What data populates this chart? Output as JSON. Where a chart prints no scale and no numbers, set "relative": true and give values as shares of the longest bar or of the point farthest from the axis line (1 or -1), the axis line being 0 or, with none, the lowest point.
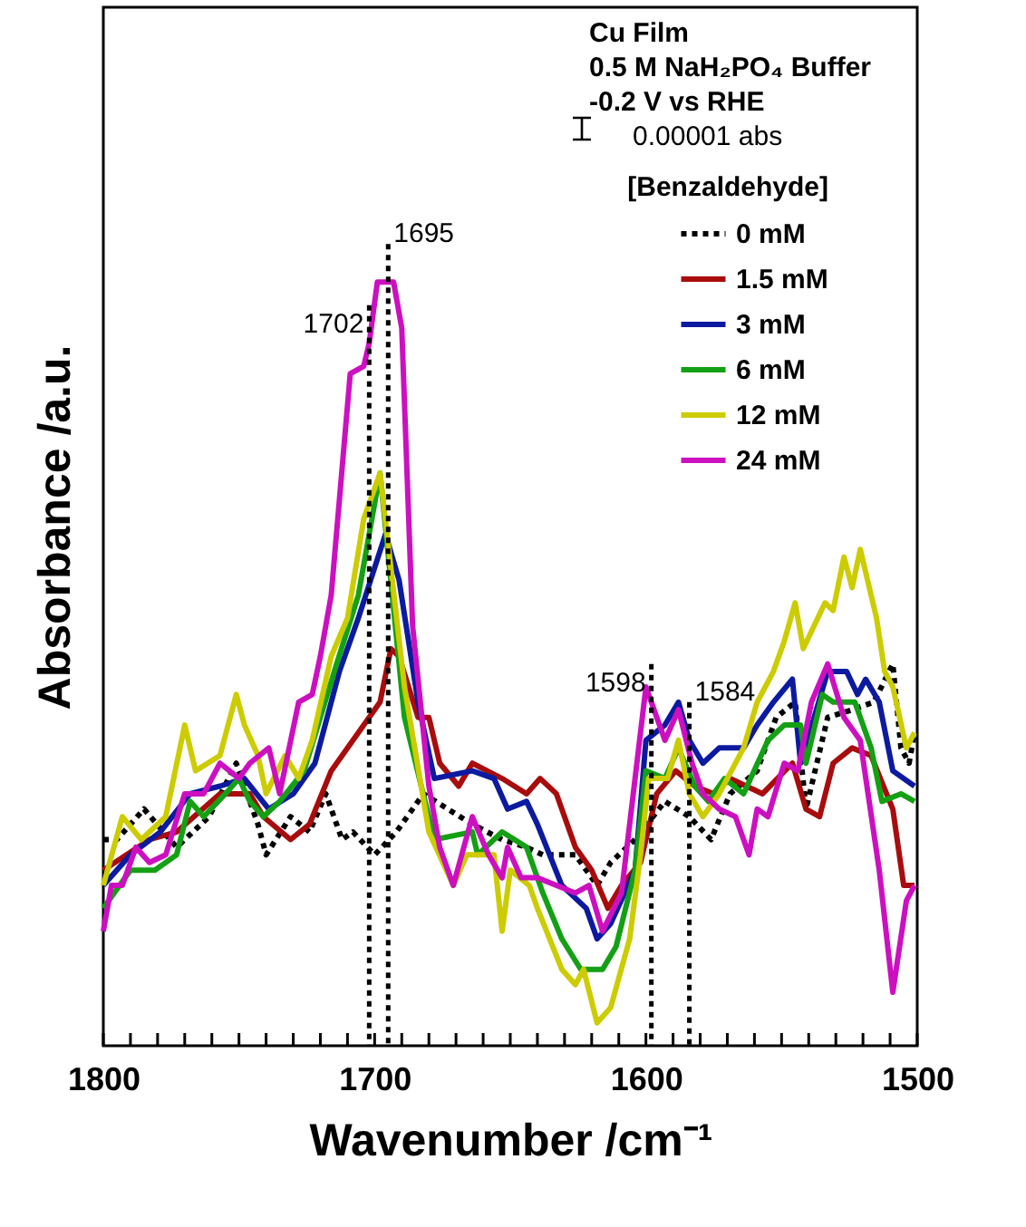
{
  "chart_data": {
    "type": "line",
    "relative": true,
    "xlabel": "Wavenumber  /cm⁻¹",
    "ylabel": "Absorbance  /a.u.",
    "legend_title": "[Benzaldehyde]",
    "legend": "top right",
    "grid": false,
    "marker": "none",
    "xlim": [
      1800,
      1500
    ],
    "xticks": [
      1800,
      {
        "value": 1790,
        "label": null
      },
      {
        "value": 1780,
        "label": null
      },
      {
        "value": 1770,
        "label": null
      },
      {
        "value": 1760,
        "label": null
      },
      {
        "value": 1750,
        "label": null
      },
      {
        "value": 1740,
        "label": null
      },
      {
        "value": 1730,
        "label": null
      },
      {
        "value": 1720,
        "label": null
      },
      {
        "value": 1710,
        "label": null
      },
      1700,
      {
        "value": 1690,
        "label": null
      },
      {
        "value": 1680,
        "label": null
      },
      {
        "value": 1670,
        "label": null
      },
      {
        "value": 1660,
        "label": null
      },
      {
        "value": 1650,
        "label": null
      },
      {
        "value": 1640,
        "label": null
      },
      {
        "value": 1630,
        "label": null
      },
      {
        "value": 1620,
        "label": null
      },
      {
        "value": 1610,
        "label": null
      },
      1600,
      {
        "value": 1590,
        "label": null
      },
      {
        "value": 1580,
        "label": null
      },
      {
        "value": 1570,
        "label": null
      },
      {
        "value": 1560,
        "label": null
      },
      {
        "value": 1550,
        "label": null
      },
      {
        "value": 1540,
        "label": null
      },
      {
        "value": 1530,
        "label": null
      },
      {
        "value": 1520,
        "label": null
      },
      {
        "value": 1510,
        "label": null
      },
      1500
    ],
    "annotations": [
      "Cu Film",
      "0.5 M NaH₂PO₄ Buffer",
      "-0.2 V vs RHE",
      "0.00001 abs"
    ],
    "ref_lines": [
      {
        "axis": "x",
        "value": 1702,
        "label": "1702",
        "line_style": "dotted",
        "color": "#000000"
      },
      {
        "axis": "x",
        "value": 1695,
        "label": "1695",
        "line_style": "dotted",
        "color": "#000000"
      },
      {
        "axis": "x",
        "value": 1598,
        "label": "1598",
        "line_style": "dotted",
        "color": "#000000"
      },
      {
        "axis": "x",
        "value": 1584,
        "label": "1584",
        "line_style": "dotted",
        "color": "#000000"
      }
    ],
    "series": [
      {
        "name": "0 mM",
        "color": "#000000",
        "line_style": "dotted",
        "x": [
          1800,
          1795,
          1785,
          1773,
          1761,
          1751,
          1743,
          1740,
          1731,
          1724,
          1718,
          1712,
          1708,
          1700,
          1692,
          1682,
          1664,
          1653,
          1644,
          1638,
          1626,
          1618,
          1613,
          1604,
          1593,
          1584,
          1576,
          1569,
          1559,
          1552,
          1545,
          1541,
          1537,
          1533,
          1524,
          1516,
          1509,
          1506,
          1503,
          1501
        ],
        "values": [
          0.27,
          0.27,
          0.31,
          0.26,
          0.3,
          0.37,
          0.29,
          0.25,
          0.3,
          0.28,
          0.33,
          0.27,
          0.28,
          0.25,
          0.28,
          0.33,
          0.29,
          0.27,
          0.26,
          0.25,
          0.25,
          0.21,
          0.24,
          0.27,
          0.32,
          0.3,
          0.27,
          0.33,
          0.36,
          0.43,
          0.45,
          0.31,
          0.37,
          0.43,
          0.44,
          0.45,
          0.5,
          0.39,
          0.37,
          0.41
        ]
      },
      {
        "name": "1.5 mM",
        "color": "#a80c0c",
        "line_style": "solid",
        "x": [
          1800,
          1783,
          1773,
          1757,
          1746,
          1741,
          1731,
          1724,
          1716,
          1706,
          1698,
          1694,
          1691,
          1684,
          1680,
          1676,
          1669,
          1664,
          1653,
          1644,
          1639,
          1633,
          1626,
          1620,
          1614,
          1609,
          1602,
          1596,
          1589,
          1582,
          1575,
          1569,
          1557,
          1546,
          1541,
          1536,
          1531,
          1524,
          1517,
          1509,
          1505,
          1501
        ],
        "values": [
          0.23,
          0.27,
          0.28,
          0.33,
          0.33,
          0.3,
          0.27,
          0.29,
          0.36,
          0.41,
          0.45,
          0.52,
          0.51,
          0.43,
          0.43,
          0.37,
          0.34,
          0.37,
          0.35,
          0.33,
          0.35,
          0.33,
          0.26,
          0.23,
          0.18,
          0.21,
          0.24,
          0.33,
          0.36,
          0.34,
          0.33,
          0.35,
          0.33,
          0.37,
          0.31,
          0.3,
          0.37,
          0.39,
          0.38,
          0.31,
          0.21,
          0.21
        ]
      },
      {
        "name": "3 mM",
        "color": "#0c1aa0",
        "line_style": "solid",
        "x": [
          1800,
          1790,
          1779,
          1768,
          1757,
          1748,
          1739,
          1730,
          1722,
          1713,
          1706,
          1696,
          1691,
          1684,
          1678,
          1664,
          1656,
          1651,
          1644,
          1640,
          1631,
          1622,
          1618,
          1613,
          1604,
          1600,
          1593,
          1588,
          1584,
          1579,
          1573,
          1564,
          1559,
          1553,
          1546,
          1543,
          1533,
          1526,
          1522,
          1519,
          1514,
          1509,
          1501
        ],
        "values": [
          0.21,
          0.25,
          0.28,
          0.33,
          0.34,
          0.35,
          0.31,
          0.33,
          0.37,
          0.49,
          0.56,
          0.67,
          0.61,
          0.45,
          0.35,
          0.36,
          0.35,
          0.31,
          0.32,
          0.29,
          0.21,
          0.18,
          0.14,
          0.16,
          0.23,
          0.4,
          0.42,
          0.45,
          0.4,
          0.37,
          0.39,
          0.39,
          0.42,
          0.45,
          0.48,
          0.37,
          0.49,
          0.49,
          0.46,
          0.48,
          0.45,
          0.36,
          0.34
        ]
      },
      {
        "name": "6 mM",
        "color": "#14a014",
        "line_style": "solid",
        "x": [
          1800,
          1790,
          1781,
          1773,
          1768,
          1763,
          1755,
          1750,
          1746,
          1741,
          1735,
          1726,
          1714,
          1706,
          1698,
          1689,
          1678,
          1664,
          1662,
          1653,
          1644,
          1638,
          1631,
          1624,
          1616,
          1611,
          1604,
          1600,
          1593,
          1588,
          1582,
          1577,
          1571,
          1564,
          1555,
          1549,
          1543,
          1541,
          1535,
          1531,
          1523,
          1517,
          1513,
          1506,
          1501
        ],
        "values": [
          0.18,
          0.23,
          0.23,
          0.25,
          0.32,
          0.3,
          0.33,
          0.35,
          0.32,
          0.3,
          0.32,
          0.36,
          0.5,
          0.59,
          0.75,
          0.43,
          0.27,
          0.28,
          0.25,
          0.28,
          0.26,
          0.2,
          0.14,
          0.1,
          0.1,
          0.13,
          0.23,
          0.36,
          0.35,
          0.39,
          0.34,
          0.32,
          0.35,
          0.33,
          0.4,
          0.42,
          0.42,
          0.37,
          0.46,
          0.45,
          0.45,
          0.39,
          0.32,
          0.33,
          0.32
        ]
      },
      {
        "name": "12 mM",
        "color": "#cccc00",
        "line_style": "solid",
        "x": [
          1800,
          1793,
          1786,
          1777,
          1770,
          1766,
          1757,
          1751,
          1748,
          1743,
          1740,
          1733,
          1728,
          1723,
          1716,
          1710,
          1704,
          1698,
          1689,
          1680,
          1671,
          1666,
          1656,
          1653,
          1650,
          1643,
          1640,
          1631,
          1626,
          1623,
          1618,
          1613,
          1606,
          1602,
          1599,
          1592,
          1588,
          1584,
          1579,
          1573,
          1564,
          1559,
          1553,
          1549,
          1545,
          1542,
          1534,
          1531,
          1527,
          1524,
          1521,
          1515,
          1512,
          1509,
          1504,
          1501
        ],
        "values": [
          0.21,
          0.3,
          0.27,
          0.3,
          0.42,
          0.36,
          0.38,
          0.46,
          0.42,
          0.38,
          0.33,
          0.38,
          0.35,
          0.4,
          0.51,
          0.56,
          0.69,
          0.75,
          0.47,
          0.28,
          0.21,
          0.25,
          0.25,
          0.15,
          0.23,
          0.21,
          0.18,
          0.1,
          0.08,
          0.1,
          0.03,
          0.05,
          0.14,
          0.25,
          0.35,
          0.35,
          0.4,
          0.33,
          0.3,
          0.33,
          0.39,
          0.45,
          0.49,
          0.53,
          0.58,
          0.52,
          0.58,
          0.57,
          0.64,
          0.6,
          0.65,
          0.56,
          0.49,
          0.47,
          0.39,
          0.41
        ]
      },
      {
        "name": "24 mM",
        "color": "#cc10c0",
        "line_style": "solid",
        "x": [
          1800,
          1797,
          1793,
          1788,
          1783,
          1777,
          1770,
          1763,
          1757,
          1750,
          1746,
          1739,
          1735,
          1728,
          1723,
          1720,
          1716,
          1709,
          1704,
          1702,
          1699,
          1693,
          1690,
          1686,
          1680,
          1676,
          1671,
          1664,
          1658,
          1653,
          1651,
          1646,
          1640,
          1633,
          1626,
          1621,
          1616,
          1609,
          1600,
          1593,
          1588,
          1583,
          1579,
          1573,
          1567,
          1562,
          1559,
          1555,
          1549,
          1544,
          1539,
          1533,
          1527,
          1521,
          1514,
          1509,
          1504,
          1501
        ],
        "values": [
          0.15,
          0.21,
          0.21,
          0.26,
          0.24,
          0.25,
          0.33,
          0.33,
          0.37,
          0.35,
          0.37,
          0.39,
          0.33,
          0.45,
          0.46,
          0.51,
          0.59,
          0.88,
          0.89,
          0.92,
          1,
          1,
          0.94,
          0.55,
          0.34,
          0.26,
          0.21,
          0.3,
          0.25,
          0.22,
          0.26,
          0.22,
          0.22,
          0.21,
          0.2,
          0.21,
          0.15,
          0.2,
          0.47,
          0.4,
          0.44,
          0.37,
          0.33,
          0.31,
          0.3,
          0.25,
          0.31,
          0.3,
          0.37,
          0.36,
          0.45,
          0.5,
          0.43,
          0.4,
          0.23,
          0.07,
          0.19,
          0.21
        ]
      }
    ]
  }
}
